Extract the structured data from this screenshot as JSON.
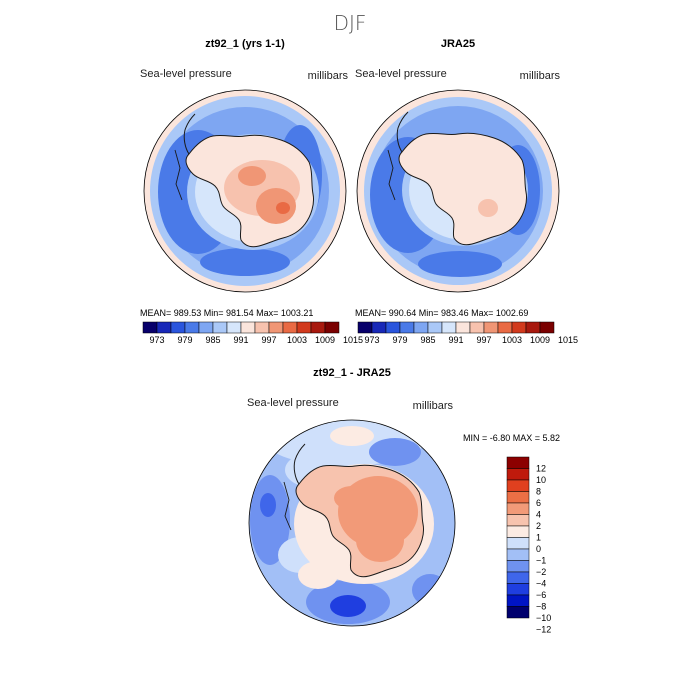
{
  "season": "DJF",
  "colors": {
    "mean_palette": [
      "#08006b",
      "#1828b8",
      "#2a55dd",
      "#4a7ae8",
      "#7ea6f2",
      "#aac8f7",
      "#d6e6fb",
      "#fbe5dc",
      "#f7c2ae",
      "#f09675",
      "#e96a44",
      "#d23a1d",
      "#a8190e",
      "#7a0000"
    ],
    "diff_palette": [
      "#00006e",
      "#0014c4",
      "#1f3ee0",
      "#3f66ea",
      "#6f92f0",
      "#a2bff6",
      "#cfe0fb",
      "#fcebe3",
      "#f7c3ae",
      "#f29a78",
      "#ec6f45",
      "#e0401f",
      "#bf1a0c",
      "#8c0000"
    ],
    "coast": "#1a1a1a"
  },
  "panels": [
    {
      "title": "zt92_1 (yrs 1-1)",
      "left_label": "Sea-level pressure",
      "right_label": "millibars",
      "stats": "MEAN= 989.53   Min= 981.54   Max= 1003.21"
    },
    {
      "title": "JRA25",
      "left_label": "Sea-level pressure",
      "right_label": "millibars",
      "stats": "MEAN= 990.64   Min= 983.46   Max= 1002.69"
    }
  ],
  "mean_colorbar_labels": [
    "973",
    "979",
    "985",
    "991",
    "997",
    "1003",
    "1009",
    "1015"
  ],
  "diff_panel": {
    "title": "zt92_1 - JRA25",
    "left_label": "Sea-level pressure",
    "right_label": "millibars",
    "stats": "MIN =   -6.80  MAX =    5.82"
  },
  "diff_colorbar_labels": [
    "12",
    "10",
    "8",
    "6",
    "4",
    "2",
    "1",
    "0",
    "−1",
    "−2",
    "−4",
    "−6",
    "−8",
    "−10",
    "−12"
  ]
}
